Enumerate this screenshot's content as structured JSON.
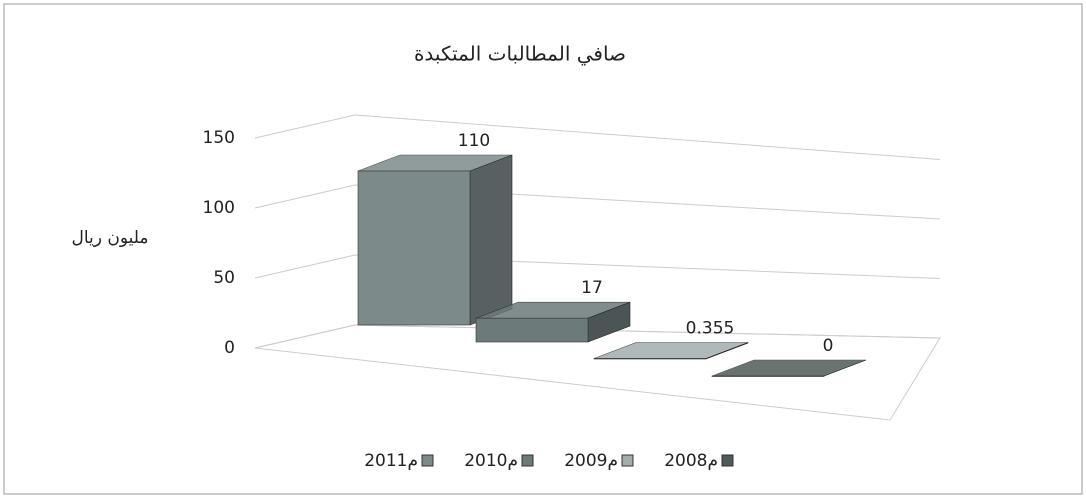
{
  "chart_data": {
    "type": "bar3d",
    "title": "صافي المطالبات المتكبدة",
    "y_label": "مليون ريال",
    "series": [
      {
        "name": "2011م",
        "color": "#7d8a8a",
        "values": [
          110
        ]
      },
      {
        "name": "2010م",
        "color": "#6c7a79",
        "values": [
          17
        ]
      },
      {
        "name": "2009م",
        "color": "#a3adad",
        "values": [
          0.355
        ]
      },
      {
        "name": "2008م",
        "color": "#4e5b5a",
        "values": [
          0
        ]
      }
    ],
    "ylim": [
      0,
      150
    ],
    "yticks": [
      0,
      50,
      100,
      150
    ],
    "grid": true
  }
}
